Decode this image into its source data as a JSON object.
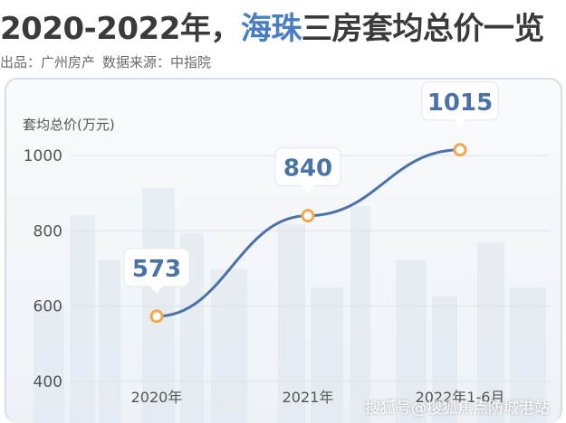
{
  "header": {
    "title_prefix": "2020-2022年，",
    "title_highlight": "海珠",
    "title_suffix": "三房套均总价一览",
    "source_publisher": "出品：广州房产",
    "source_data": "数据来源：中指院"
  },
  "watermark": "搜狐号@搜狐焦点防城港站",
  "colors": {
    "line": "#4a72a8",
    "marker": "#f2a94a",
    "label": "#4a72a8",
    "title_highlight": "#4a7ec2"
  },
  "chart_data": {
    "type": "line",
    "title": "",
    "ylabel": "套均总价(万元)",
    "xlabel": "",
    "categories": [
      "2020年",
      "2021年",
      "2022年1-6月"
    ],
    "values": [
      573,
      840,
      1015
    ],
    "data_labels": [
      "573",
      "840",
      "1015"
    ],
    "ylim": [
      400,
      1000
    ],
    "yticks": [
      "400",
      "600",
      "800",
      "1000"
    ],
    "grid": true,
    "legend": "none"
  }
}
